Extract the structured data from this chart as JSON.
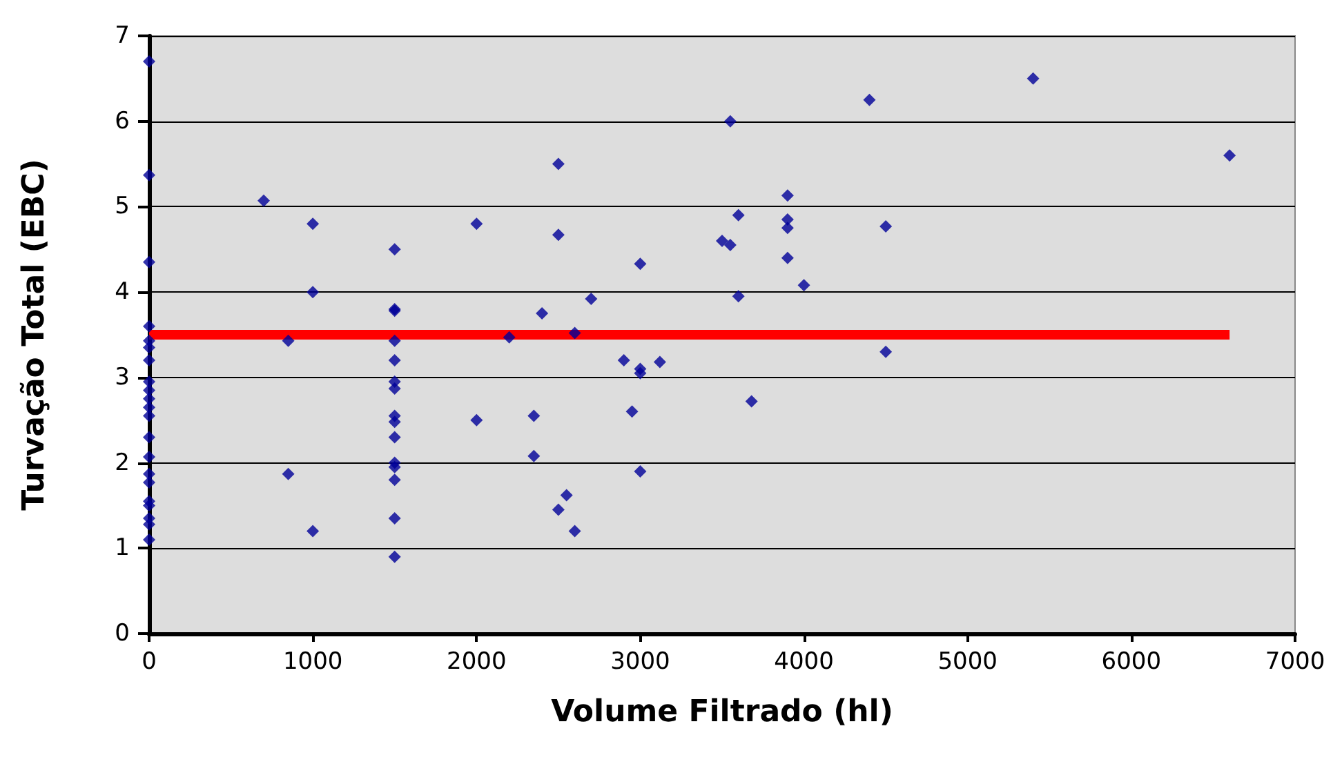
{
  "chart_data": {
    "type": "scatter",
    "xlabel": "Volume Filtrado (hl)",
    "ylabel": "Turvação Total (EBC)",
    "xlim": [
      0,
      7000
    ],
    "xticks": [
      0,
      1000,
      2000,
      3000,
      4000,
      5000,
      6000,
      7000
    ],
    "ylim": [
      0,
      7
    ],
    "yticks": [
      0,
      1,
      2,
      3,
      4,
      5,
      6,
      7
    ],
    "grid": "y",
    "marker": "diamond",
    "series": [
      {
        "color": "#000099",
        "x": [
          0,
          0,
          0,
          0,
          0,
          0,
          0,
          0,
          0,
          0,
          0,
          0,
          0,
          0,
          0,
          0,
          0,
          0,
          0,
          0,
          0,
          700,
          850,
          850,
          1000,
          1000,
          1000,
          1500,
          1500,
          1500,
          1500,
          1500,
          1500,
          1500,
          1500,
          1500,
          1500,
          1500,
          1500,
          1500,
          1500,
          1500,
          2000,
          2000,
          2200,
          2350,
          2350,
          2400,
          2500,
          2500,
          2500,
          2550,
          2600,
          2600,
          2700,
          2900,
          2950,
          3000,
          3000,
          3000,
          3000,
          3120,
          3500,
          3550,
          3550,
          3600,
          3600,
          3680,
          3900,
          3900,
          3900,
          3900,
          4000,
          4400,
          4500,
          4500,
          5400,
          6600
        ],
        "values": [
          6.7,
          5.37,
          4.35,
          3.6,
          3.43,
          3.35,
          3.2,
          2.95,
          2.85,
          2.75,
          2.65,
          2.55,
          2.3,
          2.07,
          1.87,
          1.77,
          1.55,
          1.5,
          1.35,
          1.28,
          1.1,
          5.07,
          3.43,
          1.87,
          4.8,
          4.0,
          1.2,
          4.5,
          3.8,
          3.78,
          3.43,
          3.2,
          2.95,
          2.87,
          2.55,
          2.48,
          2.3,
          2.0,
          1.95,
          1.8,
          1.35,
          0.9,
          4.8,
          2.5,
          3.47,
          2.55,
          2.08,
          3.75,
          5.5,
          4.67,
          1.45,
          1.62,
          3.52,
          1.2,
          3.92,
          3.2,
          2.6,
          4.33,
          3.1,
          3.05,
          1.9,
          3.18,
          4.6,
          6.0,
          4.55,
          4.9,
          3.95,
          2.72,
          5.13,
          4.85,
          4.75,
          4.4,
          4.08,
          6.25,
          4.77,
          3.3,
          6.5,
          5.6
        ]
      },
      {
        "type": "line",
        "color": "#ff0000",
        "x": [
          0,
          6600
        ],
        "values": [
          3.5,
          3.5
        ],
        "marker": "none"
      }
    ]
  }
}
